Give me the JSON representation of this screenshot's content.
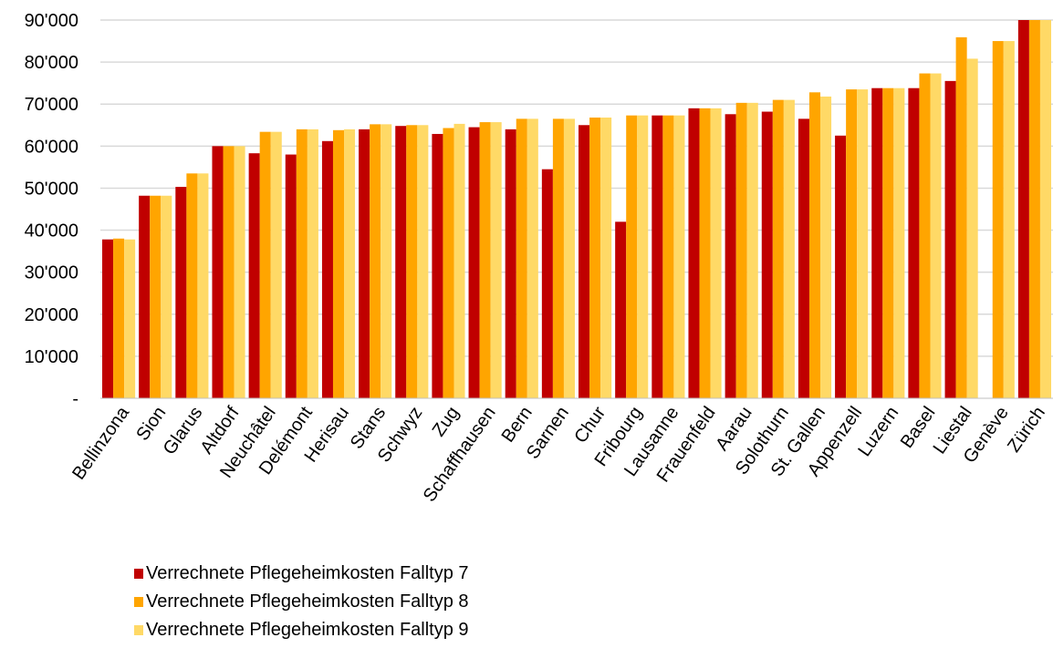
{
  "chart_data": {
    "type": "bar",
    "categories": [
      "Bellinzona",
      "Sion",
      "Glarus",
      "Altdorf",
      "Neuchâtel",
      "Delémont",
      "Herisau",
      "Stans",
      "Schwyz",
      "Zug",
      "Schaffhausen",
      "Bern",
      "Sarnen",
      "Chur",
      "Fribourg",
      "Lausanne",
      "Frauenfeld",
      "Aarau",
      "Solothurn",
      "St. Gallen",
      "Appenzell",
      "Luzern",
      "Basel",
      "Liestal",
      "Genève",
      "Zürich"
    ],
    "series": [
      {
        "name": "Verrechnete Pflegeheimkosten Falltyp 7",
        "color": "#c00000",
        "values": [
          37800,
          48200,
          50300,
          60000,
          58300,
          58000,
          61200,
          64000,
          64800,
          62900,
          64500,
          64000,
          54500,
          65000,
          42000,
          67300,
          69000,
          67600,
          68200,
          66500,
          62500,
          73800,
          73800,
          75500,
          null,
          90500
        ]
      },
      {
        "name": "Verrechnete Pflegeheimkosten Falltyp 8",
        "color": "#ffa500",
        "values": [
          38000,
          48200,
          53500,
          60000,
          63400,
          64000,
          63800,
          65200,
          65000,
          64300,
          65700,
          66500,
          66500,
          66800,
          67300,
          67300,
          69000,
          70300,
          71000,
          72800,
          73500,
          73800,
          77300,
          85900,
          85000,
          90500
        ]
      },
      {
        "name": "Verrechnete Pflegeheimkosten Falltyp 9",
        "color": "#ffd966",
        "values": [
          37800,
          48200,
          53500,
          60000,
          63400,
          64000,
          64000,
          65200,
          65000,
          65300,
          65700,
          66500,
          66500,
          66800,
          67300,
          67300,
          69000,
          70300,
          71000,
          71800,
          73500,
          73800,
          77300,
          80800,
          85000,
          90500
        ]
      }
    ],
    "y_ticks": [
      "-",
      "10'000",
      "20'000",
      "30'000",
      "40'000",
      "50'000",
      "60'000",
      "70'000",
      "80'000",
      "90'000"
    ],
    "ylim": [
      0,
      90000
    ],
    "grid": true,
    "legend_position": "bottom-left"
  }
}
